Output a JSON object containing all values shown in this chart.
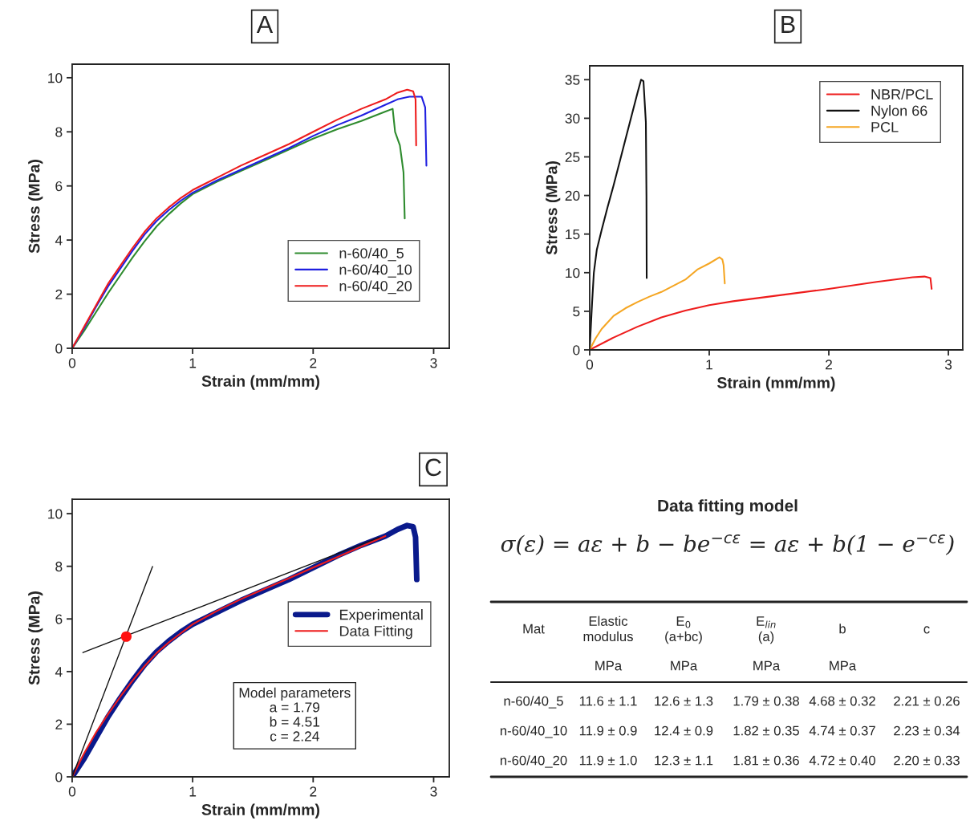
{
  "chart_data": [
    {
      "type": "line",
      "title": "A",
      "xlabel": "Strain (mm/mm)",
      "ylabel": "Stress (MPa)",
      "xlim": [
        0,
        3.13
      ],
      "ylim": [
        0,
        10.5
      ],
      "xticks": [
        0,
        1,
        2,
        3
      ],
      "yticks": [
        0,
        2,
        4,
        6,
        8,
        10
      ],
      "legend": "lower right",
      "grid": false,
      "series": [
        {
          "name": "n-60/40_5",
          "color": "#2e8b2e",
          "x": [
            0,
            0.1,
            0.2,
            0.3,
            0.4,
            0.5,
            0.6,
            0.7,
            0.8,
            0.9,
            1.0,
            1.2,
            1.4,
            1.6,
            1.8,
            2.0,
            2.2,
            2.4,
            2.6,
            2.66,
            2.68,
            2.72,
            2.75,
            2.76
          ],
          "values": [
            0,
            0.65,
            1.35,
            2.05,
            2.7,
            3.35,
            3.95,
            4.5,
            4.95,
            5.35,
            5.7,
            6.15,
            6.55,
            6.95,
            7.35,
            7.75,
            8.1,
            8.4,
            8.75,
            8.85,
            8.0,
            7.5,
            6.5,
            4.8
          ]
        },
        {
          "name": "n-60/40_10",
          "color": "#1f1fe0",
          "x": [
            0,
            0.1,
            0.2,
            0.3,
            0.4,
            0.5,
            0.6,
            0.7,
            0.8,
            0.9,
            1.0,
            1.2,
            1.4,
            1.6,
            1.8,
            2.0,
            2.2,
            2.4,
            2.6,
            2.7,
            2.8,
            2.9,
            2.93,
            2.94
          ],
          "values": [
            0,
            0.75,
            1.55,
            2.3,
            2.95,
            3.6,
            4.2,
            4.7,
            5.1,
            5.45,
            5.75,
            6.2,
            6.6,
            7.0,
            7.4,
            7.85,
            8.25,
            8.6,
            9.0,
            9.2,
            9.3,
            9.3,
            8.9,
            6.75
          ]
        },
        {
          "name": "n-60/40_20",
          "color": "#ee1c1c",
          "x": [
            0,
            0.1,
            0.2,
            0.3,
            0.4,
            0.5,
            0.6,
            0.7,
            0.8,
            0.9,
            1.0,
            1.2,
            1.4,
            1.6,
            1.8,
            2.0,
            2.2,
            2.4,
            2.6,
            2.7,
            2.78,
            2.83,
            2.85,
            2.855
          ],
          "values": [
            0,
            0.8,
            1.6,
            2.4,
            3.05,
            3.7,
            4.3,
            4.8,
            5.2,
            5.55,
            5.85,
            6.3,
            6.75,
            7.15,
            7.55,
            8.0,
            8.45,
            8.85,
            9.2,
            9.45,
            9.56,
            9.5,
            9.2,
            7.5
          ]
        }
      ]
    },
    {
      "type": "line",
      "title": "B",
      "xlabel": "Strain (mm/mm)",
      "ylabel": "Stress (MPa)",
      "xlim": [
        0,
        3.12
      ],
      "ylim": [
        0,
        36.8
      ],
      "xticks": [
        0,
        1,
        2,
        3
      ],
      "yticks": [
        0,
        5,
        10,
        15,
        20,
        25,
        30,
        35
      ],
      "legend": "top right",
      "grid": false,
      "series": [
        {
          "name": "NBR/PCL",
          "color": "#ee1c1c",
          "x": [
            0,
            0.2,
            0.4,
            0.6,
            0.8,
            1.0,
            1.2,
            1.5,
            2.0,
            2.4,
            2.7,
            2.8,
            2.85,
            2.86
          ],
          "values": [
            0,
            1.6,
            3.0,
            4.2,
            5.1,
            5.8,
            6.3,
            6.9,
            7.9,
            8.8,
            9.4,
            9.5,
            9.3,
            7.9
          ]
        },
        {
          "name": "Nylon 66",
          "color": "#111111",
          "x": [
            0,
            0.01,
            0.02,
            0.035,
            0.06,
            0.1,
            0.15,
            0.2,
            0.25,
            0.3,
            0.35,
            0.4,
            0.43,
            0.45,
            0.47,
            0.475,
            0.477
          ],
          "values": [
            0,
            3,
            6,
            10,
            13,
            15.5,
            18.5,
            21.3,
            24.3,
            27.3,
            30.3,
            33.3,
            35.0,
            34.8,
            29.5,
            20,
            9.3
          ]
        },
        {
          "name": "PCL",
          "color": "#f5a623",
          "x": [
            0,
            0.05,
            0.1,
            0.2,
            0.3,
            0.4,
            0.5,
            0.6,
            0.7,
            0.8,
            0.9,
            1.0,
            1.085,
            1.11,
            1.12,
            1.13
          ],
          "values": [
            0,
            1.5,
            2.7,
            4.4,
            5.4,
            6.2,
            6.9,
            7.5,
            8.3,
            9.1,
            10.4,
            11.2,
            12.0,
            11.7,
            11.0,
            8.6
          ]
        }
      ]
    },
    {
      "type": "line",
      "title": "C",
      "xlabel": "Strain (mm/mm)",
      "ylabel": "Stress (MPa)",
      "xlim": [
        0,
        3.13
      ],
      "ylim": [
        0,
        10.55
      ],
      "xticks": [
        0,
        1,
        2,
        3
      ],
      "yticks": [
        0,
        2,
        4,
        6,
        8,
        10
      ],
      "legend": "right",
      "grid": false,
      "annotations": [
        "Model parameters",
        "a = 1.79",
        "b = 4.51",
        "c = 2.24"
      ],
      "series": [
        {
          "name": "Experimental",
          "color": "#0a1a8c",
          "x": [
            0,
            0.1,
            0.2,
            0.3,
            0.4,
            0.5,
            0.6,
            0.7,
            0.8,
            0.9,
            1.0,
            1.2,
            1.4,
            1.6,
            1.8,
            2.0,
            2.2,
            2.4,
            2.6,
            2.7,
            2.78,
            2.83,
            2.85,
            2.86
          ],
          "values": [
            0,
            0.7,
            1.5,
            2.3,
            3.0,
            3.65,
            4.25,
            4.75,
            5.15,
            5.5,
            5.8,
            6.25,
            6.7,
            7.1,
            7.5,
            7.95,
            8.4,
            8.8,
            9.15,
            9.4,
            9.55,
            9.5,
            9.1,
            7.5
          ]
        },
        {
          "name": "Data Fitting",
          "color": "#ee1c1c",
          "x": [
            0,
            0.1,
            0.2,
            0.3,
            0.4,
            0.5,
            0.6,
            0.7,
            0.8,
            0.9,
            1.0,
            1.2,
            1.4,
            1.6,
            1.8,
            2.0,
            2.2,
            2.4,
            2.6
          ],
          "values": [
            0,
            0.9,
            1.7,
            2.4,
            3.05,
            3.65,
            4.2,
            4.7,
            5.1,
            5.45,
            5.8,
            6.3,
            6.75,
            7.15,
            7.55,
            7.95,
            8.35,
            8.75,
            9.15
          ]
        },
        {
          "color": "#111111",
          "x": [
            0.089,
            2.55
          ],
          "values": [
            4.72,
            9.1
          ]
        },
        {
          "color": "#111111",
          "x": [
            0,
            0.667
          ],
          "values": [
            0,
            7.99
          ]
        },
        {
          "type": "scatter",
          "color": "#ff1010",
          "x": [
            0.449
          ],
          "values": [
            5.33
          ],
          "marker": "circle"
        }
      ]
    },
    {
      "type": "other",
      "title": "Data fitting model",
      "subtitle": "σ(ε) = aε + b − be$^{−cε}$ = aε + b(1 − e$^{−cε}$)",
      "annotations": [
        "Mat",
        "Elastic\nmodulus",
        "E$_{0}$\n(a+bc)",
        "E$_{lin}$\n(a)",
        "b",
        "c",
        null,
        "MPa",
        "MPa",
        "MPa",
        "MPa",
        null,
        "n-60/40_5",
        "11.6 ± 1.1",
        "12.6 ± 1.3",
        "1.79 ± 0.38",
        "4.68 ± 0.32",
        "2.21 ± 0.26",
        "n-60/40_10",
        "11.9 ± 0.9",
        "12.4 ± 0.9",
        "1.82 ± 0.35",
        "4.74 ± 0.37",
        "2.23 ± 0.34",
        "n-60/40_20",
        "11.9 ± 1.0",
        "12.3 ± 1.1",
        "1.81 ± 0.36",
        "4.72 ± 0.40",
        "2.20 ± 0.33"
      ]
    }
  ]
}
